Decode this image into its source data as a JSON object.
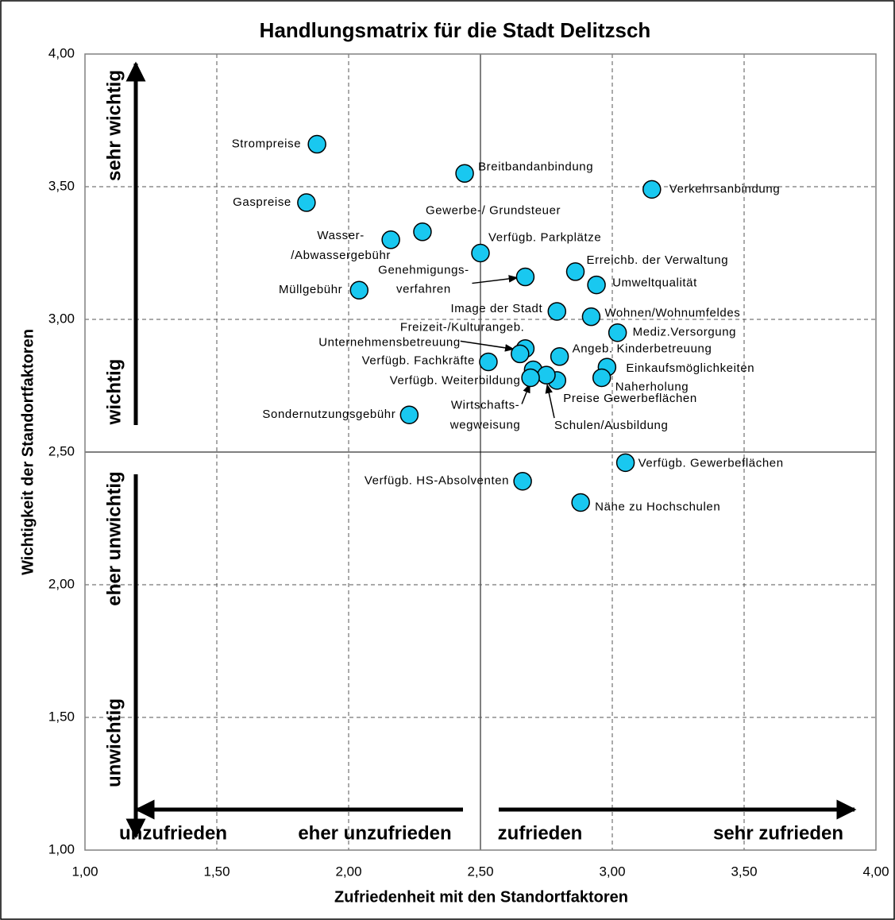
{
  "chart_data": {
    "type": "scatter",
    "title": "Handlungsmatrix für die Stadt Delitzsch",
    "x_label": "Zufriedenheit mit den Standortfaktoren",
    "y_label": "Wichtigkeit der Standortfaktoren",
    "labels": [
      "Strompreise",
      "Breitbandanbindung",
      "Verkehrsanbindung",
      "Gaspreise",
      "Gewerbe-/ Grundsteuer",
      [
        "Wasser-",
        "/Abwassergebühr"
      ],
      "Verfügb. Parkplätze",
      [
        "Genehmigungs-",
        "verfahren"
      ],
      "Erreichb. der Verwaltung",
      "Umweltqualität",
      "Müllgebühr",
      "Image der Stadt",
      "Wohnen/Wohnumfeldes",
      "Mediz.Versorgung",
      "Freizeit-/Kulturangeb.",
      "Unternehmensbetreuung",
      "Angeb. Kinderbetreuung",
      "Verfügb. Fachkräfte",
      "Einkaufsmöglichkeiten",
      "Verfügb. Weiterbildung",
      "Naherholung",
      "Preise Gewerbeflächen",
      "Schulen/Ausbildung",
      [
        "Wirtschafts-",
        "wegweisung"
      ],
      "Sondernutzungsgebühr",
      "Verfügb. Gewerbeflächen",
      "Verfügb. HS-Absolventen",
      "Nähe zu Hochschulen"
    ],
    "x": [
      1.88,
      2.44,
      3.15,
      1.84,
      2.28,
      2.16,
      2.5,
      2.67,
      2.86,
      2.94,
      2.04,
      2.79,
      2.92,
      3.02,
      2.67,
      2.65,
      2.8,
      2.53,
      2.98,
      2.7,
      2.96,
      2.79,
      2.75,
      2.69,
      2.23,
      3.05,
      2.66,
      2.88
    ],
    "values": [
      3.66,
      3.55,
      3.49,
      3.44,
      3.33,
      3.3,
      3.25,
      3.16,
      3.18,
      3.13,
      3.11,
      3.03,
      3.01,
      2.95,
      2.89,
      2.87,
      2.86,
      2.84,
      2.82,
      2.81,
      2.78,
      2.77,
      2.79,
      2.78,
      2.64,
      2.46,
      2.39,
      2.31
    ],
    "color": "#19c8f0",
    "xlim": [
      1.0,
      4.0
    ],
    "ylim": [
      1.0,
      4.0
    ],
    "xticks": [
      {
        "value": 1.0,
        "label": "1,00"
      },
      {
        "value": 1.5,
        "label": "1,50"
      },
      {
        "value": 2.0,
        "label": "2,00"
      },
      {
        "value": 2.5,
        "label": "2,50"
      },
      {
        "value": 3.0,
        "label": "3,00"
      },
      {
        "value": 3.5,
        "label": "3,50"
      },
      {
        "value": 4.0,
        "label": "4,00"
      }
    ],
    "yticks": [
      {
        "value": 1.0,
        "label": "1,00"
      },
      {
        "value": 1.5,
        "label": "1,50"
      },
      {
        "value": 2.0,
        "label": "2,00"
      },
      {
        "value": 2.5,
        "label": "2,50"
      },
      {
        "value": 3.0,
        "label": "3,00"
      },
      {
        "value": 3.5,
        "label": "3,50"
      },
      {
        "value": 4.0,
        "label": "4,00"
      }
    ],
    "grid": true,
    "annotations": [
      "sehr wichtig",
      "wichtig",
      "eher unwichtig",
      "unwichtig",
      "unzufrieden",
      "eher unzufrieden",
      "zufrieden",
      "sehr zufrieden"
    ]
  }
}
